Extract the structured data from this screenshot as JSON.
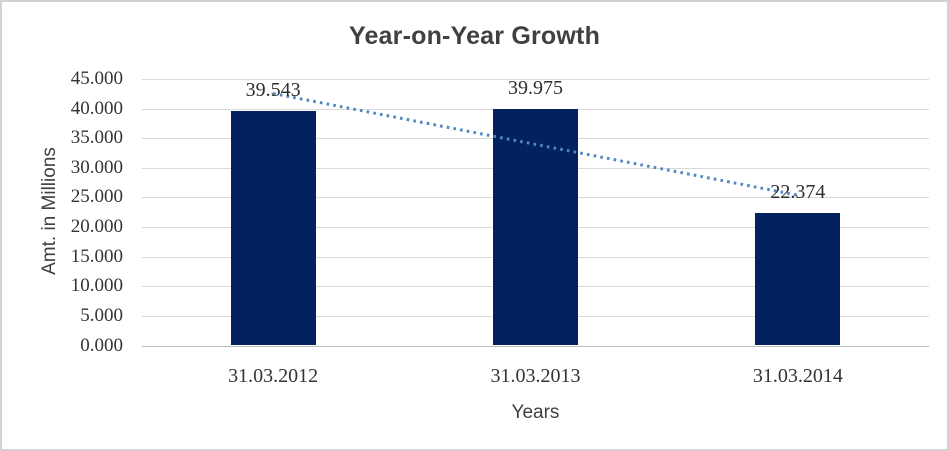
{
  "chart_data": {
    "type": "bar",
    "title": "Year-on-Year Growth",
    "xlabel": "Years",
    "ylabel": "Amt. in Millions",
    "categories": [
      "31.03.2012",
      "31.03.2013",
      "31.03.2014"
    ],
    "values": [
      39.543,
      39.975,
      22.374
    ],
    "data_labels": [
      "39.543",
      "39.975",
      "22.374"
    ],
    "ylim": [
      0,
      45
    ],
    "ytick_step": 5,
    "ytick_labels_top_to_bottom": [
      "45.000",
      "40.000",
      "35.000",
      "30.000",
      "25.000",
      "20.000",
      "15.000",
      "10.000",
      "5.000",
      "0.000"
    ],
    "grid": true,
    "legend": "none",
    "trendline": {
      "type": "linear",
      "style": "dotted"
    },
    "colors": {
      "bar_fill": "#02215e",
      "gridline": "#d9d9d9",
      "axis_line": "#bdbdbd",
      "trendline": "#4e86c6",
      "title_text": "#404040",
      "tick_text": "#333333",
      "border": "#d2d2d2"
    }
  }
}
